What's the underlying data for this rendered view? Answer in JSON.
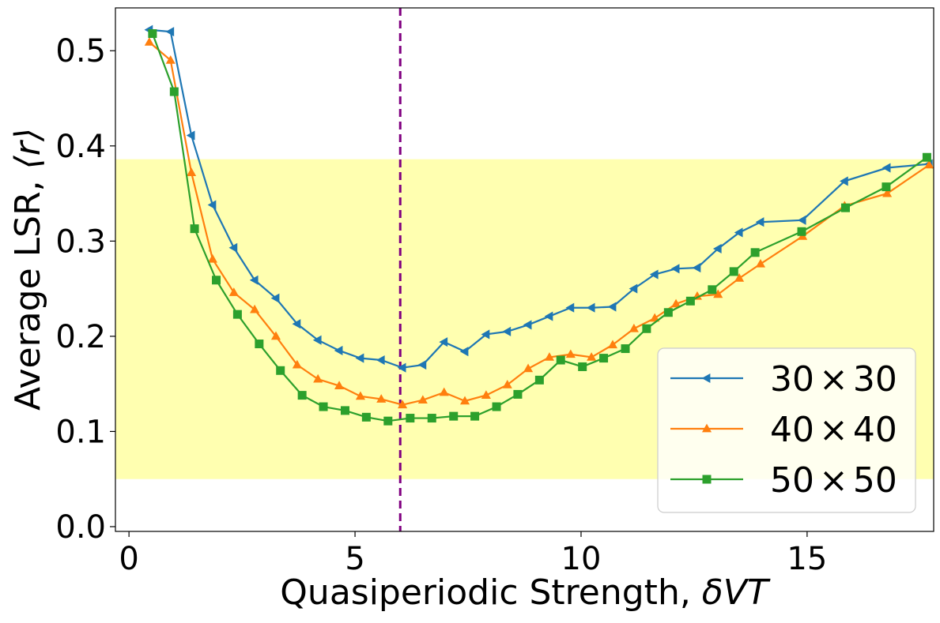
{
  "chart_data": {
    "type": "line",
    "title": "",
    "xlabel_prefix": "Quasiperiodic Strength, ",
    "xlabel_math": "δVT",
    "ylabel_prefix": "Average LSR, ",
    "ylabel_math": "⟨r⟩",
    "xlim": [
      -0.3,
      17.8
    ],
    "ylim": [
      -0.005,
      0.545
    ],
    "xticks": [
      0,
      5,
      10,
      15
    ],
    "xtick_labels": [
      "0",
      "5",
      "10",
      "15"
    ],
    "yticks": [
      0.0,
      0.1,
      0.2,
      0.3,
      0.4,
      0.5
    ],
    "ytick_labels": [
      "0.0",
      "0.1",
      "0.2",
      "0.3",
      "0.4",
      "0.5"
    ],
    "shaded_band": {
      "y0": 0.05,
      "y1": 0.386,
      "color": "#ffffb0"
    },
    "vline": {
      "x": 6.0,
      "color": "#800080",
      "style": "dashed"
    },
    "grid": false,
    "legend_position": "lower-right",
    "series": [
      {
        "name": "30 × 30",
        "legend_num1": "30",
        "legend_op": "×",
        "legend_num2": "30",
        "color": "#1f77b4",
        "marker": "triangle-left",
        "x": [
          0.45,
          0.92,
          1.38,
          1.85,
          2.32,
          2.78,
          3.25,
          3.72,
          4.18,
          4.65,
          5.12,
          5.58,
          6.05,
          6.5,
          6.97,
          7.43,
          7.9,
          8.37,
          8.83,
          9.3,
          9.77,
          10.23,
          10.7,
          11.17,
          11.63,
          12.1,
          12.57,
          13.03,
          13.5,
          13.97,
          14.9,
          15.83,
          16.77,
          17.7
        ],
        "y": [
          0.522,
          0.52,
          0.411,
          0.338,
          0.293,
          0.259,
          0.24,
          0.213,
          0.196,
          0.185,
          0.177,
          0.175,
          0.167,
          0.17,
          0.194,
          0.184,
          0.202,
          0.205,
          0.212,
          0.221,
          0.23,
          0.23,
          0.231,
          0.25,
          0.265,
          0.271,
          0.272,
          0.292,
          0.309,
          0.32,
          0.322,
          0.363,
          0.377,
          0.381
        ]
      },
      {
        "name": "40 × 40",
        "legend_num1": "40",
        "legend_op": "×",
        "legend_num2": "40",
        "color": "#ff7f0e",
        "marker": "triangle-up",
        "x": [
          0.45,
          0.92,
          1.38,
          1.85,
          2.32,
          2.78,
          3.25,
          3.72,
          4.18,
          4.65,
          5.12,
          5.58,
          6.05,
          6.5,
          6.97,
          7.43,
          7.9,
          8.37,
          8.83,
          9.3,
          9.77,
          10.23,
          10.7,
          11.17,
          11.63,
          12.1,
          12.57,
          13.03,
          13.5,
          13.97,
          14.9,
          15.83,
          16.77,
          17.7
        ],
        "y": [
          0.509,
          0.49,
          0.372,
          0.281,
          0.246,
          0.228,
          0.2,
          0.17,
          0.155,
          0.148,
          0.137,
          0.134,
          0.128,
          0.133,
          0.141,
          0.132,
          0.138,
          0.149,
          0.166,
          0.178,
          0.181,
          0.178,
          0.191,
          0.208,
          0.219,
          0.234,
          0.242,
          0.244,
          0.261,
          0.276,
          0.305,
          0.337,
          0.35,
          0.38
        ]
      },
      {
        "name": "50 × 50",
        "legend_num1": "50",
        "legend_op": "×",
        "legend_num2": "50",
        "color": "#2ca02c",
        "marker": "square",
        "x": [
          0.52,
          1.0,
          1.45,
          1.93,
          2.4,
          2.88,
          3.35,
          3.83,
          4.3,
          4.78,
          5.25,
          5.73,
          6.22,
          6.7,
          7.18,
          7.65,
          8.13,
          8.6,
          9.08,
          9.55,
          10.03,
          10.5,
          10.98,
          11.45,
          11.93,
          12.42,
          12.9,
          13.38,
          13.85,
          14.88,
          15.85,
          16.75,
          17.65
        ],
        "y": [
          0.518,
          0.457,
          0.313,
          0.259,
          0.223,
          0.192,
          0.164,
          0.138,
          0.126,
          0.122,
          0.115,
          0.111,
          0.114,
          0.114,
          0.116,
          0.116,
          0.126,
          0.139,
          0.154,
          0.175,
          0.168,
          0.177,
          0.187,
          0.208,
          0.225,
          0.237,
          0.249,
          0.268,
          0.288,
          0.31,
          0.335,
          0.357,
          0.388
        ]
      }
    ]
  }
}
